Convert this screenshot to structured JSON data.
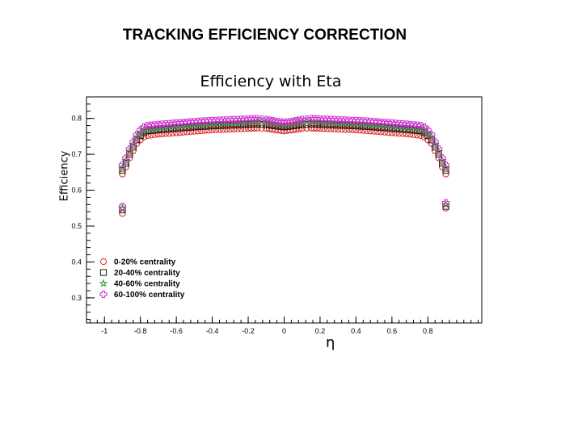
{
  "slide": {
    "title": "TRACKING EFFICIENCY CORRECTION"
  },
  "chart_data": {
    "type": "scatter",
    "title": "Efficiency with Eta",
    "xlabel": "η",
    "ylabel": "Efficiency",
    "xlim": [
      -1.1,
      1.1
    ],
    "ylim": [
      0.23,
      0.86
    ],
    "xticks": [
      "-1",
      "-0.8",
      "-0.6",
      "-0.4",
      "-0.2",
      "0",
      "0.2",
      "0.4",
      "0.6",
      "0.8"
    ],
    "xtick_values": [
      -1,
      -0.8,
      -0.6,
      -0.4,
      -0.2,
      0,
      0.2,
      0.4,
      0.6,
      0.8
    ],
    "yticks": [
      "0.3",
      "0.4",
      "0.5",
      "0.6",
      "0.7",
      "0.8"
    ],
    "ytick_values": [
      0.3,
      0.4,
      0.5,
      0.6,
      0.7,
      0.8
    ],
    "legend_position": "bottom-left",
    "x": [
      -0.9,
      -0.88,
      -0.86,
      -0.84,
      -0.82,
      -0.8,
      -0.78,
      -0.76,
      -0.7,
      -0.6,
      -0.5,
      -0.4,
      -0.3,
      -0.2,
      -0.15,
      -0.1,
      -0.05,
      0,
      0.05,
      0.1,
      0.15,
      0.2,
      0.3,
      0.4,
      0.5,
      0.6,
      0.7,
      0.76,
      0.78,
      0.8,
      0.82,
      0.84,
      0.86,
      0.88,
      0.9
    ],
    "series": [
      {
        "name": "0-20% centrality",
        "marker": "open-circle",
        "color": "#e0201a",
        "values": [
          0.645,
          0.665,
          0.69,
          0.71,
          0.73,
          0.74,
          0.748,
          0.752,
          0.756,
          0.76,
          0.764,
          0.768,
          0.77,
          0.772,
          0.773,
          0.772,
          0.768,
          0.765,
          0.768,
          0.772,
          0.773,
          0.772,
          0.77,
          0.768,
          0.764,
          0.76,
          0.756,
          0.752,
          0.748,
          0.74,
          0.73,
          0.71,
          0.69,
          0.665,
          0.645
        ],
        "edge_values": [
          0.535,
          0.55
        ]
      },
      {
        "name": "20-40% centrality",
        "marker": "open-square",
        "color": "#1a1a1a",
        "values": [
          0.655,
          0.675,
          0.7,
          0.72,
          0.74,
          0.752,
          0.76,
          0.765,
          0.768,
          0.772,
          0.776,
          0.779,
          0.781,
          0.783,
          0.784,
          0.783,
          0.779,
          0.776,
          0.779,
          0.783,
          0.784,
          0.783,
          0.781,
          0.779,
          0.776,
          0.772,
          0.768,
          0.765,
          0.76,
          0.752,
          0.74,
          0.72,
          0.7,
          0.675,
          0.655
        ],
        "edge_values": [
          0.545,
          0.555
        ]
      },
      {
        "name": "40-60% centrality",
        "marker": "open-star",
        "color": "#2aa02a",
        "values": [
          0.662,
          0.682,
          0.707,
          0.727,
          0.748,
          0.76,
          0.768,
          0.773,
          0.776,
          0.78,
          0.784,
          0.787,
          0.789,
          0.791,
          0.792,
          0.791,
          0.786,
          0.783,
          0.786,
          0.791,
          0.792,
          0.791,
          0.789,
          0.787,
          0.784,
          0.78,
          0.776,
          0.773,
          0.768,
          0.76,
          0.748,
          0.727,
          0.707,
          0.682,
          0.662
        ],
        "edge_values": [
          0.55,
          0.56
        ]
      },
      {
        "name": "60-100% centrality",
        "marker": "open-cross",
        "color": "#d42ad4",
        "values": [
          0.67,
          0.69,
          0.715,
          0.735,
          0.755,
          0.768,
          0.776,
          0.78,
          0.783,
          0.787,
          0.791,
          0.794,
          0.796,
          0.798,
          0.799,
          0.797,
          0.792,
          0.789,
          0.792,
          0.797,
          0.799,
          0.798,
          0.796,
          0.794,
          0.791,
          0.787,
          0.783,
          0.78,
          0.776,
          0.768,
          0.755,
          0.735,
          0.715,
          0.69,
          0.67
        ],
        "edge_values": [
          0.555,
          0.565
        ]
      }
    ],
    "edge_x": [
      -0.9,
      0.9
    ]
  }
}
